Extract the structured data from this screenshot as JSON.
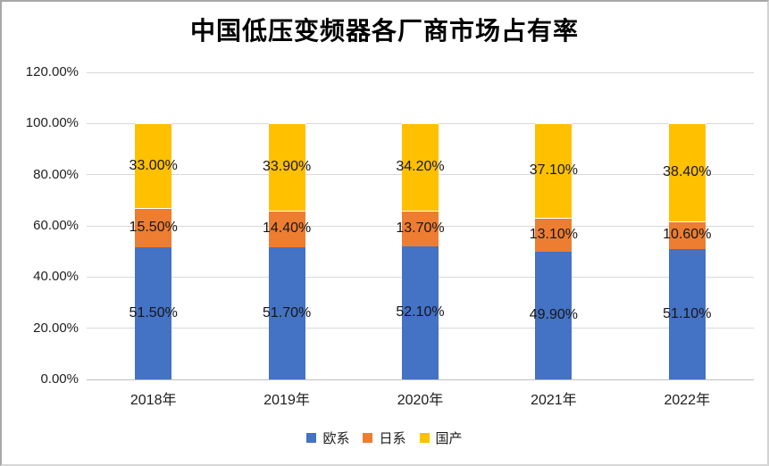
{
  "chart_data": {
    "type": "bar",
    "stacked": true,
    "title": "中国低压变频器各厂商市场占有率",
    "categories": [
      "2018年",
      "2019年",
      "2020年",
      "2021年",
      "2022年"
    ],
    "series": [
      {
        "name": "欧系",
        "color": "#4472C4",
        "values": [
          51.5,
          51.7,
          52.1,
          49.9,
          51.1
        ],
        "labels": [
          "51.50%",
          "51.70%",
          "52.10%",
          "49.90%",
          "51.10%"
        ]
      },
      {
        "name": "日系",
        "color": "#ED7D31",
        "values": [
          15.5,
          14.4,
          13.7,
          13.1,
          10.6
        ],
        "labels": [
          "15.50%",
          "14.40%",
          "13.70%",
          "13.10%",
          "10.60%"
        ]
      },
      {
        "name": "国产",
        "color": "#FFC000",
        "values": [
          33.0,
          33.9,
          34.2,
          37.1,
          38.4
        ],
        "labels": [
          "33.00%",
          "33.90%",
          "34.20%",
          "37.10%",
          "38.40%"
        ]
      }
    ],
    "y_axis": {
      "min": 0,
      "max": 120,
      "step": 20,
      "tick_labels": [
        "0.00%",
        "20.00%",
        "40.00%",
        "60.00%",
        "80.00%",
        "100.00%",
        "120.00%"
      ]
    },
    "legend": [
      "欧系",
      "日系",
      "国产"
    ],
    "legend_position": "bottom",
    "grid": true,
    "colors": {
      "gridline": "#D9D9D9",
      "axis_line": "#BFBFBF",
      "background": "#FFFFFF"
    }
  }
}
